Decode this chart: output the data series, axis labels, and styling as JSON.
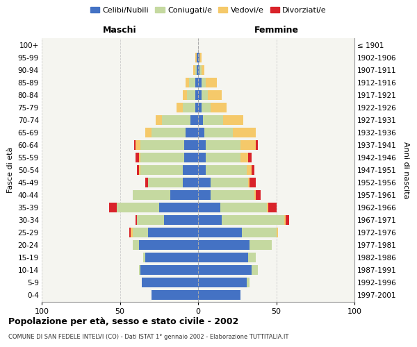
{
  "age_groups": [
    "0-4",
    "5-9",
    "10-14",
    "15-19",
    "20-24",
    "25-29",
    "30-34",
    "35-39",
    "40-44",
    "45-49",
    "50-54",
    "55-59",
    "60-64",
    "65-69",
    "70-74",
    "75-79",
    "80-84",
    "85-89",
    "90-94",
    "95-99",
    "100+"
  ],
  "birth_years": [
    "1997-2001",
    "1992-1996",
    "1987-1991",
    "1982-1986",
    "1977-1981",
    "1972-1976",
    "1967-1971",
    "1962-1966",
    "1957-1961",
    "1952-1956",
    "1947-1951",
    "1942-1946",
    "1937-1941",
    "1932-1936",
    "1927-1931",
    "1922-1926",
    "1917-1921",
    "1912-1916",
    "1907-1911",
    "1902-1906",
    "≤ 1901"
  ],
  "colors": {
    "celibe": "#4472C4",
    "coniugato": "#c5d9a0",
    "vedovo": "#f5c96a",
    "divorziato": "#d9232a"
  },
  "maschi": {
    "celibe": [
      30,
      36,
      37,
      34,
      38,
      32,
      22,
      25,
      18,
      10,
      10,
      9,
      9,
      8,
      5,
      2,
      2,
      2,
      1,
      1,
      0
    ],
    "coniugato": [
      0,
      0,
      1,
      1,
      4,
      10,
      17,
      27,
      24,
      22,
      27,
      28,
      28,
      22,
      18,
      8,
      5,
      4,
      1,
      0,
      0
    ],
    "vedovo": [
      0,
      0,
      0,
      0,
      0,
      1,
      0,
      0,
      0,
      0,
      1,
      1,
      3,
      4,
      4,
      4,
      3,
      2,
      1,
      1,
      0
    ],
    "divorziato": [
      0,
      0,
      0,
      0,
      0,
      1,
      1,
      5,
      0,
      2,
      1,
      2,
      1,
      0,
      0,
      0,
      0,
      0,
      0,
      0,
      0
    ]
  },
  "femmine": {
    "nubile": [
      27,
      31,
      34,
      32,
      33,
      28,
      15,
      14,
      8,
      8,
      5,
      5,
      5,
      4,
      3,
      2,
      2,
      2,
      1,
      1,
      0
    ],
    "coniugata": [
      0,
      2,
      4,
      5,
      14,
      22,
      40,
      30,
      28,
      24,
      26,
      22,
      22,
      18,
      13,
      6,
      4,
      3,
      1,
      0,
      0
    ],
    "vedova": [
      0,
      0,
      0,
      0,
      0,
      1,
      1,
      1,
      1,
      1,
      3,
      5,
      10,
      15,
      13,
      10,
      9,
      7,
      2,
      1,
      0
    ],
    "divorziata": [
      0,
      0,
      0,
      0,
      0,
      0,
      2,
      5,
      3,
      4,
      2,
      2,
      1,
      0,
      0,
      0,
      0,
      0,
      0,
      0,
      0
    ]
  },
  "xlim": 100,
  "title": "Popolazione per età, sesso e stato civile - 2002",
  "subtitle": "COMUNE DI SAN FEDELE INTELVI (CO) - Dati ISTAT 1° gennaio 2002 - Elaborazione TUTTITALIA.IT",
  "ylabel_left": "Fasce di età",
  "ylabel_right": "Anni di nascita",
  "legend_labels": [
    "Celibi/Nubili",
    "Coniugati/e",
    "Vedovi/e",
    "Divorziati/e"
  ],
  "header_maschi": "Maschi",
  "header_femmine": "Femmine",
  "bg_color": "#f5f5f0",
  "plot_bg": "#f5f5f0"
}
